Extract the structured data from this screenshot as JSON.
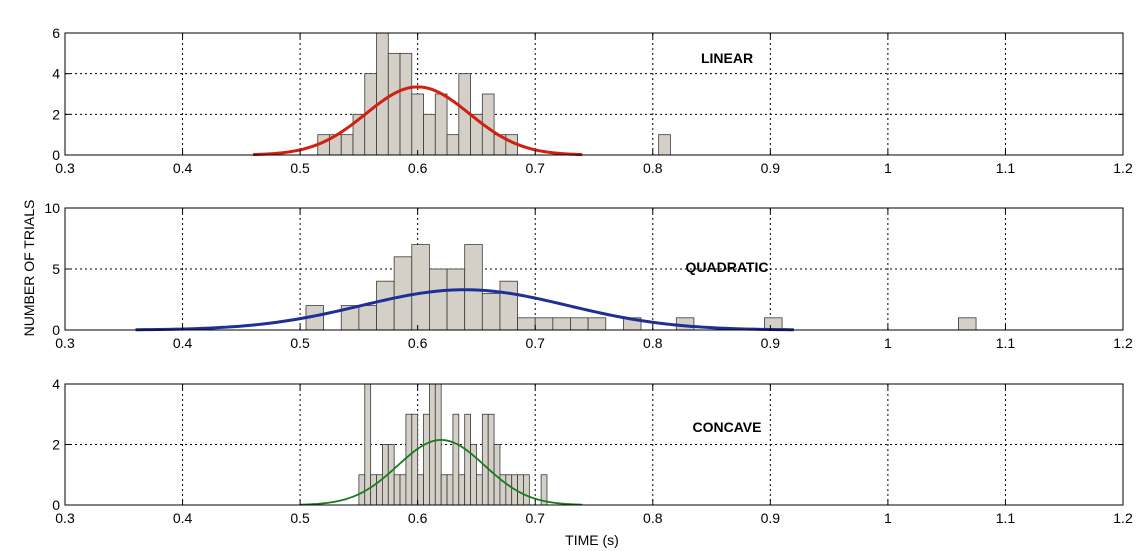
{
  "figure": {
    "ylabel": "NUMBER OF TRIALS",
    "xlabel": "TIME (s)"
  },
  "chart_data": [
    {
      "type": "bar",
      "label": "LINEAR",
      "xlim": [
        0.3,
        1.2
      ],
      "ylim": [
        0,
        6
      ],
      "xticks": [
        "0.3",
        "0.4",
        "0.5",
        "0.6",
        "0.7",
        "0.8",
        "0.9",
        "1",
        "1.1",
        "1.2"
      ],
      "yticks": [
        "0",
        "2",
        "4",
        "6"
      ],
      "grid": true,
      "bin_width": 0.01,
      "bins": [
        [
          0.52,
          1
        ],
        [
          0.53,
          1
        ],
        [
          0.54,
          1
        ],
        [
          0.55,
          2
        ],
        [
          0.56,
          4
        ],
        [
          0.57,
          6
        ],
        [
          0.58,
          5
        ],
        [
          0.59,
          5
        ],
        [
          0.6,
          3
        ],
        [
          0.61,
          2
        ],
        [
          0.62,
          3
        ],
        [
          0.63,
          1
        ],
        [
          0.64,
          4
        ],
        [
          0.65,
          2
        ],
        [
          0.66,
          3
        ],
        [
          0.67,
          1
        ],
        [
          0.68,
          1
        ],
        [
          0.81,
          1
        ]
      ],
      "fit": {
        "mean": 0.6,
        "sd": 0.044,
        "peak": 3.35,
        "range": [
          0.46,
          0.74
        ],
        "color": "#d02010"
      }
    },
    {
      "type": "bar",
      "label": "QUADRATIC",
      "xlim": [
        0.3,
        1.2
      ],
      "ylim": [
        0,
        10
      ],
      "xticks": [
        "0.3",
        "0.4",
        "0.5",
        "0.6",
        "0.7",
        "0.8",
        "0.9",
        "1",
        "1.1",
        "1.2"
      ],
      "yticks": [
        "0",
        "5",
        "10"
      ],
      "grid": true,
      "bin_width": 0.015,
      "bins": [
        [
          0.5125,
          2
        ],
        [
          0.5425,
          2
        ],
        [
          0.5575,
          2
        ],
        [
          0.5725,
          4
        ],
        [
          0.5875,
          6
        ],
        [
          0.6025,
          7
        ],
        [
          0.6175,
          5
        ],
        [
          0.6325,
          5
        ],
        [
          0.6475,
          7
        ],
        [
          0.6625,
          3
        ],
        [
          0.6775,
          4
        ],
        [
          0.6925,
          1
        ],
        [
          0.7075,
          1
        ],
        [
          0.7225,
          1
        ],
        [
          0.7375,
          1
        ],
        [
          0.7525,
          1
        ],
        [
          0.7825,
          1
        ],
        [
          0.8275,
          1
        ],
        [
          0.9025,
          1
        ],
        [
          1.0675,
          1
        ]
      ],
      "fit": {
        "mean": 0.64,
        "sd": 0.088,
        "peak": 3.3,
        "range": [
          0.36,
          0.92
        ],
        "color": "#1f2f96"
      }
    },
    {
      "type": "bar",
      "label": "CONCAVE",
      "xlim": [
        0.3,
        1.2
      ],
      "ylim": [
        0,
        4
      ],
      "xticks": [
        "0.3",
        "0.4",
        "0.5",
        "0.6",
        "0.7",
        "0.8",
        "0.9",
        "1",
        "1.1",
        "1.2"
      ],
      "yticks": [
        "0",
        "2",
        "4"
      ],
      "grid": true,
      "bin_width": 0.005,
      "bins": [
        [
          0.5525,
          1
        ],
        [
          0.5575,
          4
        ],
        [
          0.5625,
          1
        ],
        [
          0.5675,
          1
        ],
        [
          0.5725,
          2
        ],
        [
          0.5775,
          2
        ],
        [
          0.5825,
          1
        ],
        [
          0.5875,
          1
        ],
        [
          0.5925,
          3
        ],
        [
          0.5975,
          3
        ],
        [
          0.6025,
          1
        ],
        [
          0.6075,
          3
        ],
        [
          0.6125,
          4
        ],
        [
          0.6175,
          4
        ],
        [
          0.6225,
          1
        ],
        [
          0.6275,
          1
        ],
        [
          0.6325,
          3
        ],
        [
          0.6375,
          1
        ],
        [
          0.6425,
          3
        ],
        [
          0.6475,
          2
        ],
        [
          0.6525,
          1
        ],
        [
          0.6575,
          3
        ],
        [
          0.6625,
          3
        ],
        [
          0.6675,
          2
        ],
        [
          0.6725,
          1
        ],
        [
          0.6775,
          1
        ],
        [
          0.6825,
          1
        ],
        [
          0.6875,
          1
        ],
        [
          0.6925,
          1
        ],
        [
          0.7075,
          1
        ]
      ],
      "fit": {
        "mean": 0.62,
        "sd": 0.037,
        "peak": 2.15,
        "range": [
          0.5,
          0.74
        ],
        "color": "#1b7a1b"
      }
    }
  ]
}
